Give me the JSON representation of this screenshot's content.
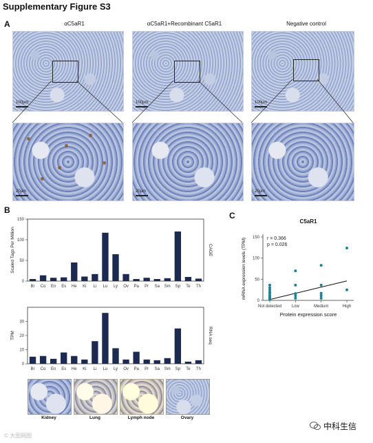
{
  "figure_title": "Supplementary Figure S3",
  "panel_a": {
    "letter": "A",
    "columns": [
      "αC5aR1",
      "αC5aR1+Recombinant C5aR1",
      "Negative control"
    ],
    "scale_top": "100μm",
    "scale_bottom": "20μm"
  },
  "panel_b": {
    "letter": "B",
    "thumbnails": [
      "Kidney",
      "Lung",
      "Lymph node",
      "Ovary"
    ]
  },
  "panel_c": {
    "letter": "C",
    "stat_r": "r = 0.366",
    "stat_p": "p = 0.026"
  },
  "watermark": "© 大图网图",
  "logo": "中科生信",
  "chart_data": [
    {
      "type": "bar",
      "title": "",
      "ylabel": "Scaled Tags Per Million",
      "side_label": "CAGE",
      "categories": [
        "Br",
        "Co",
        "En",
        "Es",
        "He",
        "Ki",
        "Li",
        "Lu",
        "Ly",
        "Ov",
        "Pa",
        "Pr",
        "Sa",
        "Sm",
        "Sp",
        "Te",
        "Th"
      ],
      "values": [
        5,
        14,
        8,
        9,
        45,
        11,
        17,
        117,
        65,
        17,
        5,
        8,
        5,
        7,
        120,
        10,
        6
      ],
      "yticks": [
        0,
        50,
        100,
        150
      ],
      "ylim": [
        0,
        150
      ],
      "color": "#1c2a52"
    },
    {
      "type": "bar",
      "title": "",
      "ylabel": "TPM",
      "side_label": "RNA seq",
      "categories": [
        "Br",
        "Co",
        "En",
        "Es",
        "He",
        "Ki",
        "Li",
        "Lu",
        "Ly",
        "Ov",
        "Pa",
        "Pr",
        "Sa",
        "Sm",
        "Sp",
        "Te",
        "Th"
      ],
      "values": [
        5,
        5.5,
        3.5,
        8,
        5.5,
        3,
        16,
        36,
        11,
        3,
        8.5,
        3,
        2.5,
        4,
        25,
        1.5,
        2.5
      ],
      "yticks": [
        0,
        10,
        20,
        30
      ],
      "ylim": [
        0,
        40
      ],
      "color": "#1c2a52"
    },
    {
      "type": "scatter",
      "title": "C5aR1",
      "xlabel": "Protein expression score",
      "ylabel": "mRNA expression levels (TPM)",
      "categories": [
        "Not detected",
        "Low",
        "Medium",
        "High"
      ],
      "yticks": [
        0,
        50,
        100,
        150
      ],
      "ylim": [
        0,
        150
      ],
      "points": [
        {
          "x": "Not detected",
          "y": 2
        },
        {
          "x": "Not detected",
          "y": 4
        },
        {
          "x": "Not detected",
          "y": 6
        },
        {
          "x": "Not detected",
          "y": 9
        },
        {
          "x": "Not detected",
          "y": 12
        },
        {
          "x": "Not detected",
          "y": 17
        },
        {
          "x": "Not detected",
          "y": 20
        },
        {
          "x": "Not detected",
          "y": 25
        },
        {
          "x": "Not detected",
          "y": 30
        },
        {
          "x": "Not detected",
          "y": 36
        },
        {
          "x": "Low",
          "y": 5
        },
        {
          "x": "Low",
          "y": 11
        },
        {
          "x": "Low",
          "y": 16
        },
        {
          "x": "Low",
          "y": 36
        },
        {
          "x": "Low",
          "y": 70
        },
        {
          "x": "Medium",
          "y": 5
        },
        {
          "x": "Medium",
          "y": 11
        },
        {
          "x": "Medium",
          "y": 17
        },
        {
          "x": "Medium",
          "y": 36
        },
        {
          "x": "Medium",
          "y": 83
        },
        {
          "x": "High",
          "y": 25
        },
        {
          "x": "High",
          "y": 124
        }
      ],
      "trend_line": {
        "x_start": "Not detected",
        "y_start": 2,
        "x_end": "High",
        "y_end": 46
      },
      "color": "#1f7f95"
    }
  ]
}
